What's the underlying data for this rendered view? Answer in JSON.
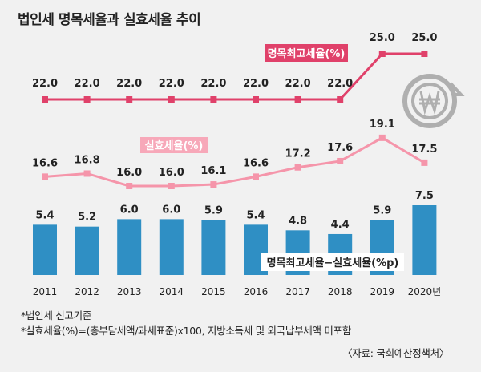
{
  "title": "법인세 명목세율과 실효세율 추이",
  "notes": [
    "*법인세 신고기준",
    "*실효세율(%)=(총부담세액/과세표준)x100, 지방소득세 및 외국납부세액 미포함"
  ],
  "source": "〈자료: 국회예산정책처〉",
  "colors": {
    "nominal": "#e0416a",
    "nominal_label_bg": "#e0416a",
    "effective": "#f595aa",
    "effective_label_bg": "#f7a8b9",
    "bar": "#2f8fc4",
    "background": "#f1f1f1",
    "icon": "#9a9a9a"
  },
  "chart_data": {
    "type": "bar",
    "categories": [
      "2011",
      "2012",
      "2013",
      "2014",
      "2015",
      "2016",
      "2017",
      "2018",
      "2019",
      "2020년"
    ],
    "series": [
      {
        "name": "명목최고세율(%)",
        "type": "line",
        "values": [
          22.0,
          22.0,
          22.0,
          22.0,
          22.0,
          22.0,
          22.0,
          22.0,
          25.0,
          25.0
        ]
      },
      {
        "name": "실효세율(%)",
        "type": "line",
        "values": [
          16.6,
          16.8,
          16.0,
          16.0,
          16.1,
          16.6,
          17.2,
          17.6,
          19.1,
          17.5
        ]
      },
      {
        "name": "명목최고세율−실효세율(%p)",
        "type": "bar",
        "values": [
          5.4,
          5.2,
          6.0,
          6.0,
          5.9,
          5.4,
          4.8,
          4.4,
          5.9,
          7.5
        ]
      }
    ]
  }
}
